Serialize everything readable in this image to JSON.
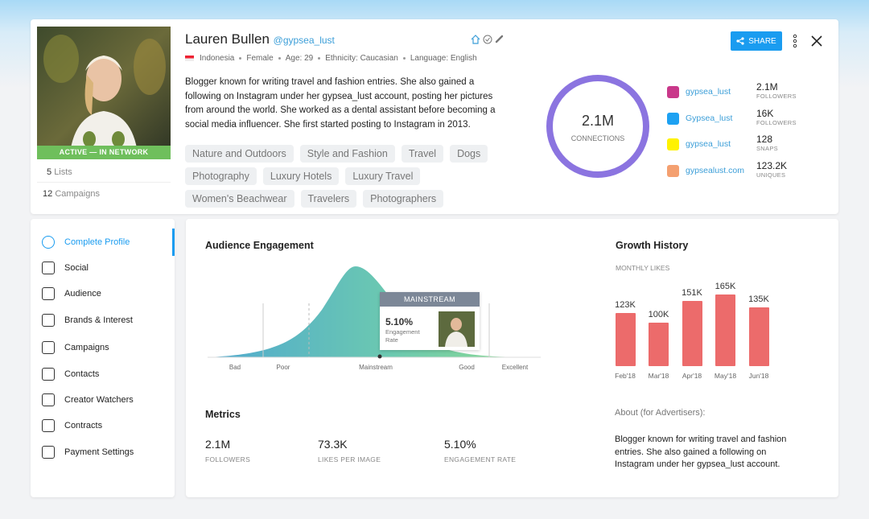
{
  "profile": {
    "name": "Lauren Bullen",
    "handle": "@gypsea_lust",
    "status": "ACTIVE — IN NETWORK",
    "lists": {
      "count": "5",
      "label": "Lists"
    },
    "campaigns": {
      "count": "12",
      "label": "Campaigns"
    },
    "meta": [
      "Indonesia",
      "Female",
      "Age: 29",
      "Ethnicity: Caucasian",
      "Language: English"
    ],
    "bio": "Blogger known for writing travel and fashion entries. She also gained a following on Instagram under her gypsea_lust account, posting her pictures from around the world. She worked as a dental assistant before becoming a social media influencer. She first started posting to Instagram in 2013.",
    "tags": [
      "Nature and Outdoors",
      "Style and Fashion",
      "Travel",
      "Dogs",
      "Photography",
      "Luxury Hotels",
      "Luxury Travel",
      "Women's Beachwear",
      "Travelers",
      "Photographers"
    ]
  },
  "share": "SHARE",
  "connections": {
    "value": "2.1M",
    "label": "CONNECTIONS"
  },
  "socials": [
    {
      "handle": "gypsea_lust",
      "stat": "2.1M",
      "label": "FOLLOWERS"
    },
    {
      "handle": "Gypsea_lust",
      "stat": "16K",
      "label": "FOLLOWERS"
    },
    {
      "handle": "gypsea_lust",
      "stat": "128",
      "label": "SNAPS"
    },
    {
      "handle": "gypsealust.com",
      "stat": "123.2K",
      "label": "UNIQUES"
    }
  ],
  "nav": [
    "Complete Profile",
    "Social",
    "Audience",
    "Brands & Interest",
    "Campaigns",
    "Contacts",
    "Creator Watchers",
    "Contracts",
    "Payment Settings"
  ],
  "audience_engagement": {
    "title": "Audience Engagement",
    "scale": [
      "Bad",
      "Poor",
      "Mainstream",
      "Good",
      "Excellent"
    ],
    "badge": "MAINSTREAM",
    "value": "5.10%",
    "value_label": "Engagement Rate"
  },
  "chart_data": {
    "type": "bar",
    "title": "Growth History",
    "subtitle": "MONTHLY LIKES",
    "categories": [
      "Feb'18",
      "Mar'18",
      "Apr'18",
      "May'18",
      "Jun'18"
    ],
    "values": [
      123000,
      100000,
      151000,
      165000,
      135000
    ],
    "value_labels": [
      "123K",
      "100K",
      "151K",
      "165K",
      "135K"
    ],
    "color": "#ec6b6b"
  },
  "metrics": {
    "title": "Metrics",
    "items": [
      {
        "value": "2.1M",
        "label": "FOLLOWERS"
      },
      {
        "value": "73.3K",
        "label": "LIKES PER IMAGE"
      },
      {
        "value": "5.10%",
        "label": "ENGAGEMENT RATE"
      }
    ]
  },
  "about": {
    "title": "About (for Advertisers):",
    "text": "Blogger known for writing travel and fashion entries. She also gained a following on Instagram under her gypsea_lust account."
  }
}
